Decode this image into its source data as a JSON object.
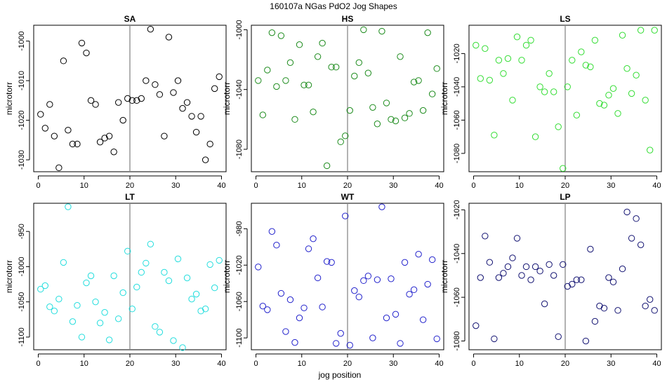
{
  "figure": {
    "title": "160107a   NGas PdO2 Jog Shapes",
    "xlabel": "jog position"
  },
  "chart_data": [
    {
      "type": "scatter",
      "title": "SA",
      "ylabel": "microtorr",
      "color": "#000000",
      "xlim": [
        -1,
        41
      ],
      "ylim": [
        -1033,
        -996
      ],
      "xticks": [
        0,
        10,
        20,
        30,
        40
      ],
      "yticks": [
        -1030,
        -1020,
        -1010,
        -1000
      ],
      "vline": 20,
      "x": [
        0.5,
        1.5,
        2.5,
        3.5,
        4.5,
        5.5,
        6.5,
        7.5,
        8.5,
        9.5,
        10.5,
        11.5,
        12.5,
        13.5,
        14.5,
        15.5,
        16.5,
        17.5,
        18.5,
        19.5,
        20.5,
        21.5,
        22.5,
        23.5,
        24.5,
        25.5,
        26.5,
        27.5,
        28.5,
        29.5,
        30.5,
        31.5,
        32.5,
        33.5,
        34.5,
        35.5,
        36.5,
        37.5,
        38.5,
        39.5
      ],
      "y": [
        -1018.5,
        -1022,
        -1016,
        -1024,
        -1032,
        -1005,
        -1022.5,
        -1026,
        -1026,
        -1000.5,
        -1003,
        -1015,
        -1016,
        -1025.5,
        -1024.5,
        -1024,
        -1028,
        -1015.5,
        -1020,
        -1014.5,
        -1015,
        -1015,
        -1014.5,
        -1010,
        -997,
        -1011,
        -1013.5,
        -1024,
        -999,
        -1013,
        -1010,
        -1017,
        -1015.5,
        -1019,
        -1023,
        -1019,
        -1030,
        -1026,
        -1012,
        -1009
      ]
    },
    {
      "type": "scatter",
      "title": "HS",
      "ylabel": "microtorr",
      "color": "#1a8a1a",
      "xlim": [
        -1,
        41
      ],
      "ylim": [
        -1095,
        -997
      ],
      "xticks": [
        0,
        10,
        20,
        30,
        40
      ],
      "yticks": [
        -1080,
        -1040,
        -1000
      ],
      "vline": 20,
      "x": [
        0.5,
        1.5,
        2.5,
        3.5,
        4.5,
        5.5,
        6.5,
        7.5,
        8.5,
        9.5,
        10.5,
        11.5,
        12.5,
        13.5,
        14.5,
        15.5,
        16.5,
        17.5,
        18.5,
        19.5,
        20.5,
        21.5,
        22.5,
        23.5,
        24.5,
        25.5,
        26.5,
        27.5,
        28.5,
        29.5,
        30.5,
        31.5,
        32.5,
        33.5,
        34.5,
        35.5,
        36.5,
        37.5,
        38.5,
        39.5
      ],
      "y": [
        -1034,
        -1057,
        -1027,
        -1002,
        -1038,
        -1004,
        -1034,
        -1022,
        -1060,
        -1010,
        -1037,
        -1037,
        -1055,
        -1018,
        -1009,
        -1091,
        -1025,
        -1025,
        -1075,
        -1071,
        -1054,
        -1031,
        -1022,
        -1000,
        -1029,
        -1052,
        -1063,
        -1001,
        -1049,
        -1060,
        -1061,
        -1018,
        -1059,
        -1056,
        -1035,
        -1034,
        -1054,
        -1002,
        -1043,
        -1026
      ]
    },
    {
      "type": "scatter",
      "title": "LS",
      "ylabel": "microtorr",
      "color": "#33dd33",
      "xlim": [
        -1,
        41
      ],
      "ylim": [
        -1091,
        -1003
      ],
      "xticks": [
        0,
        10,
        20,
        30,
        40
      ],
      "yticks": [
        -1080,
        -1060,
        -1040,
        -1020
      ],
      "vline": 20,
      "x": [
        0.5,
        1.5,
        2.5,
        3.5,
        4.5,
        5.5,
        6.5,
        7.5,
        8.5,
        9.5,
        10.5,
        11.5,
        12.5,
        13.5,
        14.5,
        15.5,
        16.5,
        17.5,
        18.5,
        19.5,
        20.5,
        21.5,
        22.5,
        23.5,
        24.5,
        25.5,
        26.5,
        27.5,
        28.5,
        29.5,
        30.5,
        31.5,
        32.5,
        33.5,
        34.5,
        35.5,
        36.5,
        37.5,
        38.5,
        39.5
      ],
      "y": [
        -1015,
        -1035,
        -1017,
        -1036,
        -1069,
        -1024,
        -1032,
        -1023,
        -1048,
        -1010,
        -1024,
        -1015,
        -1012,
        -1070,
        -1040,
        -1043,
        -1032,
        -1043,
        -1064,
        -1089,
        -1040,
        -1024,
        -1057,
        -1019,
        -1027,
        -1028,
        -1012,
        -1050,
        -1051,
        -1045,
        -1041,
        -1056,
        -1009,
        -1029,
        -1044,
        -1033,
        -1006,
        -1048,
        -1078,
        -1006
      ]
    },
    {
      "type": "scatter",
      "title": "LT",
      "ylabel": "microtorr",
      "color": "#22dddd",
      "xlim": [
        -1,
        41
      ],
      "ylim": [
        -1118,
        -910
      ],
      "xticks": [
        0,
        10,
        20,
        30,
        40
      ],
      "yticks": [
        -1100,
        -1050,
        -1000,
        -950
      ],
      "vline": 20,
      "x": [
        0.5,
        1.5,
        2.5,
        3.5,
        4.5,
        5.5,
        6.5,
        7.5,
        8.5,
        9.5,
        10.5,
        11.5,
        12.5,
        13.5,
        14.5,
        15.5,
        16.5,
        17.5,
        18.5,
        19.5,
        20.5,
        21.5,
        22.5,
        23.5,
        24.5,
        25.5,
        26.5,
        27.5,
        28.5,
        29.5,
        30.5,
        31.5,
        32.5,
        33.5,
        34.5,
        35.5,
        36.5,
        37.5,
        38.5,
        39.5
      ],
      "y": [
        -1032,
        -1027,
        -1057,
        -1063,
        -1046,
        -994,
        -915,
        -1078,
        -1055,
        -1100,
        -1023,
        -1013,
        -1050,
        -1080,
        -1065,
        -1104,
        -1013,
        -1074,
        -1037,
        -978,
        -1060,
        -1029,
        -1008,
        -995,
        -968,
        -1085,
        -1093,
        -1008,
        -1020,
        -1105,
        -989,
        -1115,
        -1016,
        -1046,
        -1039,
        -1063,
        -1060,
        -997,
        -1030,
        -991
      ]
    },
    {
      "type": "scatter",
      "title": "WT",
      "ylabel": "microtorr",
      "color": "#2222cc",
      "xlim": [
        -1,
        41
      ],
      "ylim": [
        -1113,
        -952
      ],
      "xticks": [
        0,
        10,
        20,
        30,
        40
      ],
      "yticks": [
        -1100,
        -1060,
        -1020,
        -980
      ],
      "vline": 20,
      "x": [
        0.5,
        1.5,
        2.5,
        3.5,
        4.5,
        5.5,
        6.5,
        7.5,
        8.5,
        9.5,
        10.5,
        11.5,
        12.5,
        13.5,
        14.5,
        15.5,
        16.5,
        17.5,
        18.5,
        19.5,
        20.5,
        21.5,
        22.5,
        23.5,
        24.5,
        25.5,
        26.5,
        27.5,
        28.5,
        29.5,
        30.5,
        31.5,
        32.5,
        33.5,
        34.5,
        35.5,
        36.5,
        37.5,
        38.5,
        39.5
      ],
      "y": [
        -1022,
        -1065,
        -1069,
        -983,
        -998,
        -1051,
        -1093,
        -1058,
        -1105,
        -1078,
        -1067,
        -1002,
        -991,
        -1034,
        -1066,
        -1016,
        -1017,
        -1106,
        -1095,
        -966,
        -1108,
        -1048,
        -1055,
        -1037,
        -1032,
        -1100,
        -1036,
        -956,
        -1078,
        -1035,
        -1074,
        -1106,
        -1017,
        -1052,
        -1047,
        -1008,
        -1080,
        -1041,
        -1014,
        -1101
      ]
    },
    {
      "type": "scatter",
      "title": "LP",
      "ylabel": "microtorr",
      "color": "#101070",
      "xlim": [
        -1,
        41
      ],
      "ylim": [
        -1084,
        -1017
      ],
      "xticks": [
        0,
        10,
        20,
        30,
        40
      ],
      "yticks": [
        -1080,
        -1060,
        -1040,
        -1020
      ],
      "vline": 20,
      "x": [
        0.5,
        1.5,
        2.5,
        3.5,
        4.5,
        5.5,
        6.5,
        7.5,
        8.5,
        9.5,
        10.5,
        11.5,
        12.5,
        13.5,
        14.5,
        15.5,
        16.5,
        17.5,
        18.5,
        19.5,
        20.5,
        21.5,
        22.5,
        23.5,
        24.5,
        25.5,
        26.5,
        27.5,
        28.5,
        29.5,
        30.5,
        31.5,
        32.5,
        33.5,
        34.5,
        35.5,
        36.5,
        37.5,
        38.5,
        39.5
      ],
      "y": [
        -1073,
        -1051,
        -1032,
        -1044,
        -1079,
        -1051,
        -1049,
        -1046,
        -1042,
        -1033,
        -1050,
        -1046,
        -1052,
        -1046,
        -1048,
        -1063,
        -1045,
        -1050,
        -1078,
        -1045,
        -1055,
        -1054,
        -1052,
        -1052,
        -1080,
        -1038,
        -1071,
        -1064,
        -1065,
        -1051,
        -1053,
        -1066,
        -1047,
        -1021,
        -1033,
        -1024,
        -1036,
        -1064,
        -1061,
        -1066
      ]
    }
  ]
}
